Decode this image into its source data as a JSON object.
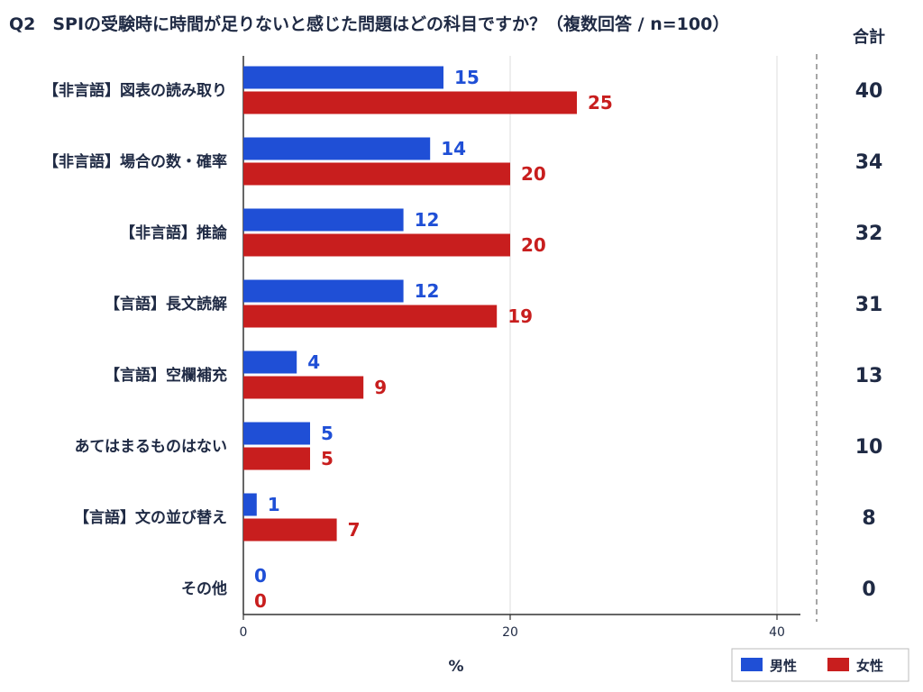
{
  "chart_data": {
    "type": "bar",
    "orientation": "horizontal",
    "title": "Q2　SPIの受験時に時間が足りないと感じた問題はどの科目ですか？（複数回答 / n=100）",
    "xlabel": "%",
    "ylabel": "",
    "xlim": [
      0,
      40
    ],
    "xticks": [
      0,
      20,
      40
    ],
    "grid": true,
    "legend_position": "bottom-right",
    "categories": [
      "【非言語】図表の読み取り",
      "【非言語】場合の数・確率",
      "【非言語】推論",
      "【言語】長文読解",
      "【言語】空欄補充",
      "あてはまるものはない",
      "【言語】文の並び替え",
      "その他"
    ],
    "series": [
      {
        "name": "男性",
        "color": "#1f4fd6",
        "values": [
          15,
          14,
          12,
          12,
          4,
          5,
          1,
          0
        ]
      },
      {
        "name": "女性",
        "color": "#c81e1e",
        "values": [
          25,
          20,
          20,
          19,
          9,
          5,
          7,
          0
        ]
      }
    ],
    "totals_header": "合計",
    "totals": [
      40,
      34,
      32,
      31,
      13,
      10,
      8,
      0
    ]
  }
}
